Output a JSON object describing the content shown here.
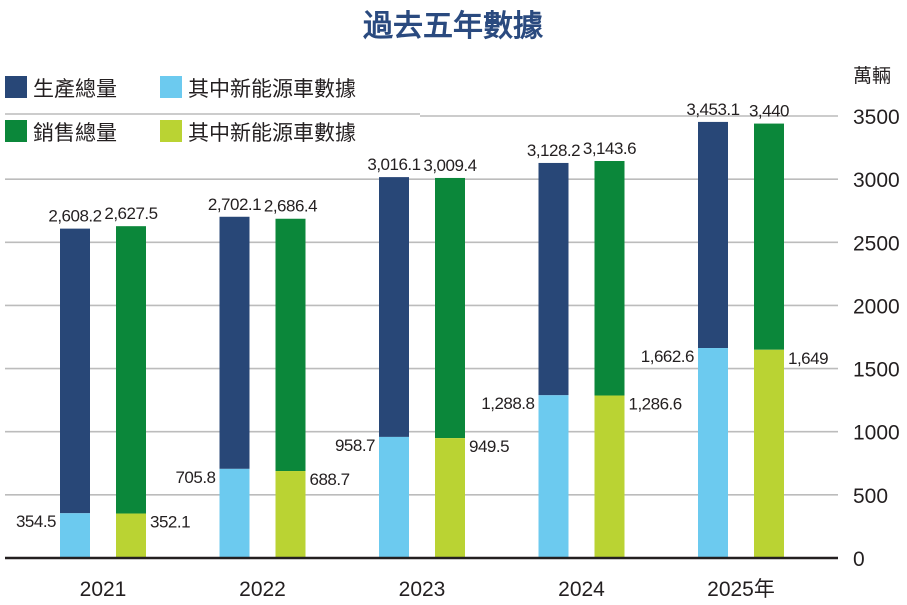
{
  "chart_data": {
    "type": "bar",
    "subtype": "grouped-overlaid",
    "title": "過去五年數據",
    "xlabel": "",
    "ylabel": "萬輛",
    "ylim": [
      0,
      3500
    ],
    "yticks": [
      0,
      500,
      1000,
      1500,
      2000,
      2500,
      3000,
      3500
    ],
    "ytick_labels": [
      "0",
      "500",
      "1000",
      "1500",
      "2000",
      "2500",
      "3000",
      "3500"
    ],
    "y_axis_side": "right",
    "grid": true,
    "legend_position": "top-left",
    "categories": [
      "2021",
      "2022",
      "2023",
      "2024",
      "2025年"
    ],
    "series": [
      {
        "name": "生產總量",
        "color": "#284777",
        "group": "production",
        "values": [
          2608.2,
          2702.1,
          3016.1,
          3128.2,
          3453.1
        ],
        "labels": [
          "2,608.2",
          "2,702.1",
          "3,016.1",
          "3,128.2",
          "3,453.1"
        ]
      },
      {
        "name": "其中新能源車數據",
        "color": "#6ccaef",
        "group": "production",
        "values": [
          354.5,
          705.8,
          958.7,
          1288.8,
          1662.6
        ],
        "labels": [
          "354.5",
          "705.8",
          "958.7",
          "1,288.8",
          "1,662.6"
        ]
      },
      {
        "name": "銷售總量",
        "color": "#0b873a",
        "group": "sales",
        "values": [
          2627.5,
          2686.4,
          3009.4,
          3143.6,
          3440
        ],
        "labels": [
          "2,627.5",
          "2,686.4",
          "3,009.4",
          "3,143.6",
          "3,440"
        ]
      },
      {
        "name": "其中新能源車數據",
        "color": "#bad333",
        "group": "sales",
        "values": [
          352.1,
          688.7,
          949.5,
          1286.6,
          1649
        ],
        "labels": [
          "352.1",
          "688.7",
          "949.5",
          "1,286.6",
          "1,649"
        ]
      }
    ]
  }
}
